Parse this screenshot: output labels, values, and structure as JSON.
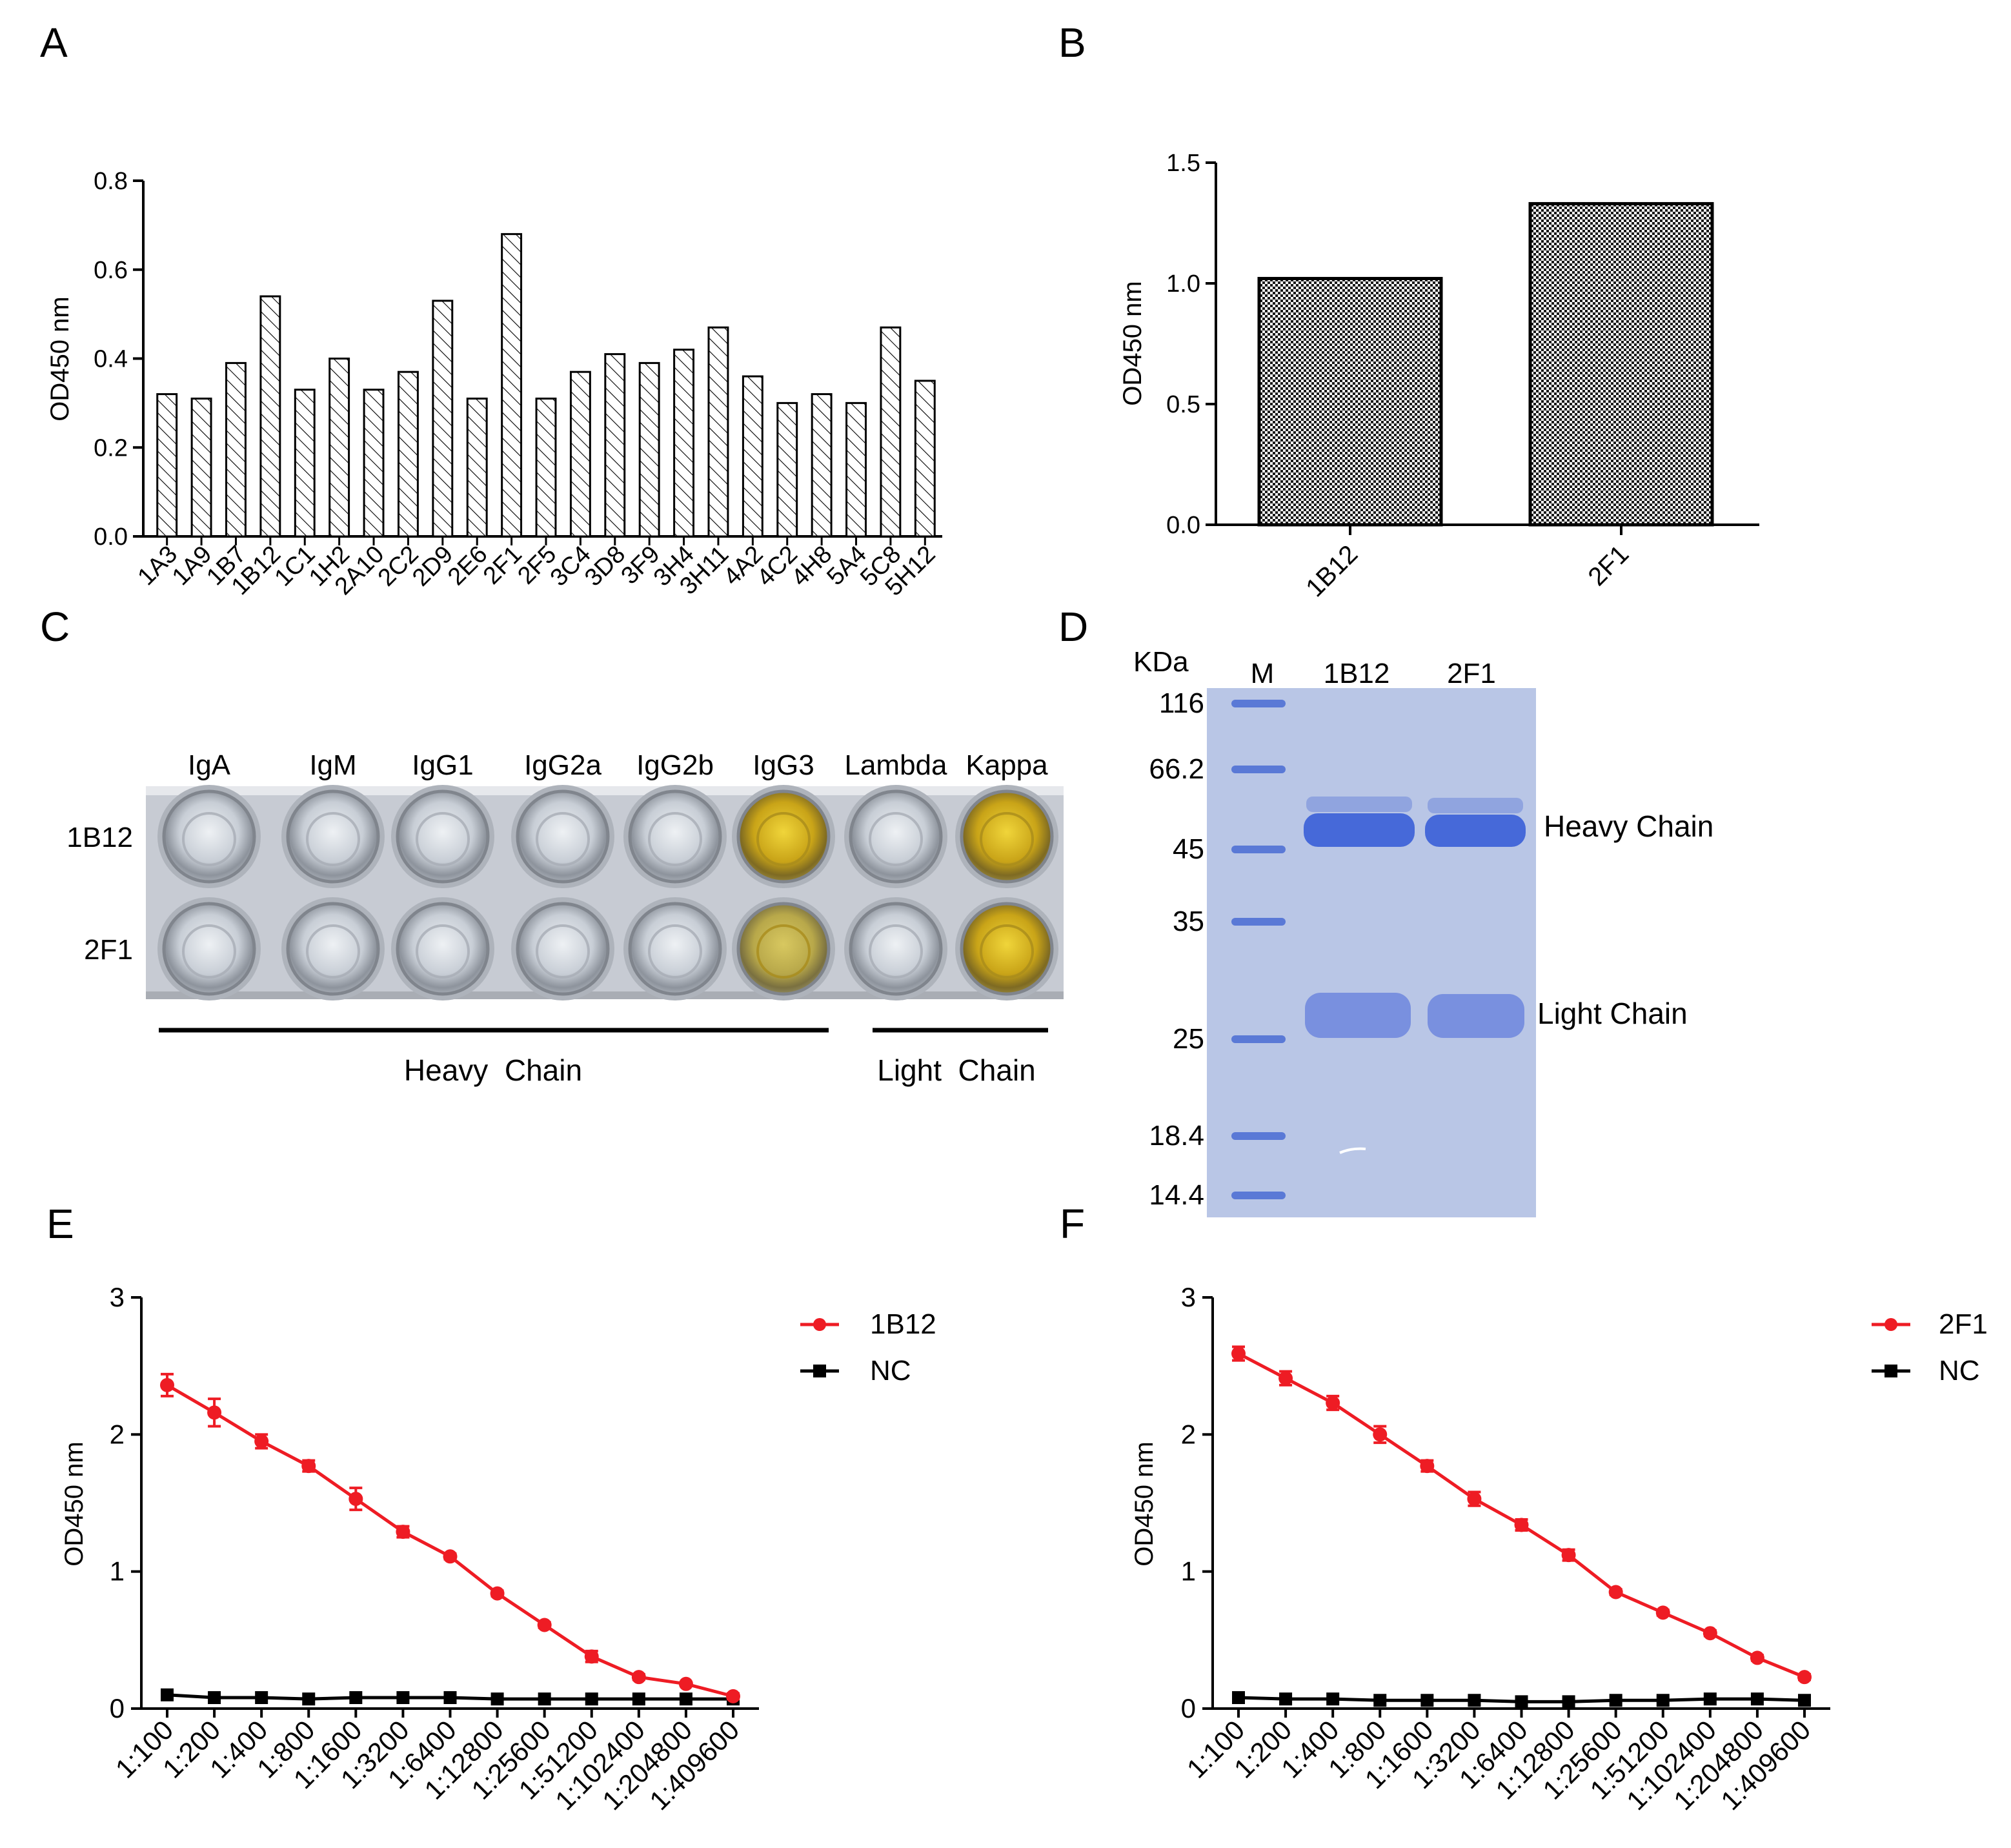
{
  "colors": {
    "red_series": "#ee1c24",
    "black_series": "#000000",
    "gel_background": "#b9c6e6",
    "gel_band": "#3f64d8",
    "plate_frame": "#c7cbd3",
    "well_clear": "#d9dee4",
    "well_yellow": "#d8b417"
  },
  "chart_data": [
    {
      "panel": "A",
      "type": "bar",
      "fill": "diagonal-hatch",
      "ylabel": "OD450 nm",
      "ylim": [
        0,
        0.8
      ],
      "yticks": [
        "0.0",
        "0.2",
        "0.4",
        "0.6",
        "0.8"
      ],
      "categories": [
        "1A3",
        "1A9",
        "1B7",
        "1B12",
        "1C1",
        "1H2",
        "2A10",
        "2C2",
        "2D9",
        "2E6",
        "2F1",
        "2F5",
        "3C4",
        "3D8",
        "3F9",
        "3H4",
        "3H11",
        "4A2",
        "4C2",
        "4H8",
        "5A4",
        "5C8",
        "5H12"
      ],
      "values": [
        0.32,
        0.31,
        0.39,
        0.54,
        0.33,
        0.4,
        0.33,
        0.37,
        0.53,
        0.31,
        0.68,
        0.31,
        0.37,
        0.41,
        0.39,
        0.42,
        0.47,
        0.36,
        0.3,
        0.32,
        0.3,
        0.47,
        0.35
      ]
    },
    {
      "panel": "B",
      "type": "bar",
      "fill": "checkered",
      "ylabel": "OD450 nm",
      "ylim": [
        0,
        1.5
      ],
      "yticks": [
        "0.0",
        "0.5",
        "1.0",
        "1.5"
      ],
      "categories": [
        "1B12",
        "2F1"
      ],
      "values": [
        1.02,
        1.33
      ]
    },
    {
      "panel": "E",
      "type": "line",
      "ylabel": "OD450 nm",
      "ylim": [
        0,
        3
      ],
      "yticks": [
        "0",
        "1",
        "2",
        "3"
      ],
      "x": [
        "1:100",
        "1:200",
        "1:400",
        "1:800",
        "1:1600",
        "1:3200",
        "1:6400",
        "1:12800",
        "1:25600",
        "1:51200",
        "1:102400",
        "1:204800",
        "1:409600"
      ],
      "series": [
        {
          "name": "1B12",
          "color": "red",
          "marker": "circle",
          "values": [
            2.36,
            2.16,
            1.95,
            1.77,
            1.53,
            1.29,
            1.11,
            0.84,
            0.61,
            0.38,
            0.23,
            0.18,
            0.09
          ],
          "errors": [
            0.08,
            0.1,
            0.05,
            0.04,
            0.08,
            0.04,
            0.02,
            0.02,
            0.02,
            0.04,
            0.02,
            0.01,
            0.02
          ]
        },
        {
          "name": "NC",
          "color": "black",
          "marker": "square",
          "values": [
            0.1,
            0.08,
            0.08,
            0.07,
            0.08,
            0.08,
            0.08,
            0.07,
            0.07,
            0.07,
            0.07,
            0.07,
            0.07
          ],
          "errors": [
            0.01,
            0.01,
            0.01,
            0.01,
            0.01,
            0.01,
            0.01,
            0.01,
            0.01,
            0.01,
            0.01,
            0.01,
            0.01
          ]
        }
      ]
    },
    {
      "panel": "F",
      "type": "line",
      "ylabel": "OD450 nm",
      "ylim": [
        0,
        3
      ],
      "yticks": [
        "0",
        "1",
        "2",
        "3"
      ],
      "x": [
        "1:100",
        "1:200",
        "1:400",
        "1:800",
        "1:1600",
        "1:3200",
        "1:6400",
        "1:12800",
        "1:25600",
        "1:51200",
        "1:102400",
        "1:204800",
        "1:409600"
      ],
      "series": [
        {
          "name": "2F1",
          "color": "red",
          "marker": "circle",
          "values": [
            2.59,
            2.41,
            2.23,
            2.0,
            1.77,
            1.53,
            1.34,
            1.12,
            0.85,
            0.7,
            0.55,
            0.37,
            0.23
          ],
          "errors": [
            0.05,
            0.05,
            0.05,
            0.06,
            0.04,
            0.05,
            0.04,
            0.04,
            0.02,
            0.02,
            0.02,
            0.02,
            0.02
          ]
        },
        {
          "name": "NC",
          "color": "black",
          "marker": "square",
          "values": [
            0.08,
            0.07,
            0.07,
            0.06,
            0.06,
            0.06,
            0.05,
            0.05,
            0.06,
            0.06,
            0.07,
            0.07,
            0.06
          ],
          "errors": [
            0.01,
            0.01,
            0.01,
            0.01,
            0.01,
            0.01,
            0.01,
            0.01,
            0.01,
            0.01,
            0.01,
            0.01,
            0.01
          ]
        }
      ]
    }
  ],
  "panel_c": {
    "label": "C",
    "columns": [
      "IgA",
      "IgM",
      "IgG1",
      "IgG2a",
      "IgG2b",
      "IgG3",
      "Lambda",
      "Kappa"
    ],
    "rows": [
      "1B12",
      "2F1"
    ],
    "positive_columns": [
      "IgG3",
      "Kappa"
    ],
    "heavy_chain_label": "Heavy  Chain",
    "light_chain_label": "Light  Chain"
  },
  "panel_d": {
    "label": "D",
    "unit_label": "KDa",
    "lane_labels": [
      "M",
      "1B12",
      "2F1"
    ],
    "marker_kda": [
      "116",
      "66.2",
      "45",
      "35",
      "25",
      "18.4",
      "14.4"
    ],
    "heavy_chain_label": "Heavy Chain",
    "light_chain_label": "Light Chain"
  },
  "panel_labels": {
    "a": "A",
    "b": "B",
    "e": "E",
    "f": "F"
  }
}
